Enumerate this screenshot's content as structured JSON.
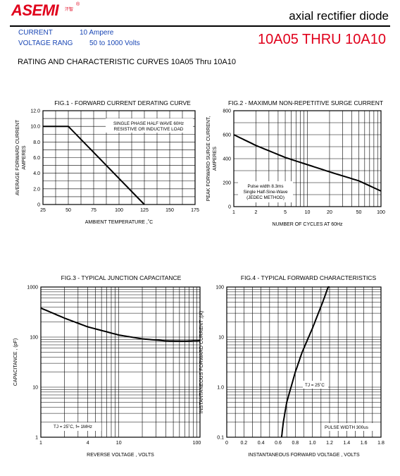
{
  "header": {
    "logo_text": "ASEMI",
    "logo_sub": "汗智",
    "reg_mark": "®",
    "doc_type": "axial rectifier diode",
    "current_label": "CURRENT",
    "current_value": "10 Ampere",
    "voltage_label": "VOLTAGE RANG",
    "voltage_value": "50 to 1000 Volts",
    "part_range": "10A05 THRU 10A10",
    "page_heading": "RATING AND CHARACTERISTIC CURVES 10A05 Thru 10A10"
  },
  "chart_data": [
    {
      "id": "fig1",
      "type": "line",
      "title": "FIG.1 - FORWARD CURRENT DERATING CURVE",
      "xlabel": "AMBIENT TEMPERATURE ,˚C",
      "ylabel": "AVERAGE FORWARD CURRENT\nAMPERES",
      "xlim": [
        25,
        175
      ],
      "ylim": [
        0,
        12
      ],
      "xticks": [
        25,
        50,
        75,
        100,
        125,
        150,
        175
      ],
      "xticklabels": [
        "25",
        "50",
        "75",
        "100",
        "125",
        "150",
        "175"
      ],
      "yticks": [
        0,
        2,
        4,
        6,
        8,
        10,
        12
      ],
      "yticklabels": [
        "0",
        "2.0",
        "4.0",
        "6.0",
        "8.0",
        "10.0",
        "12.0"
      ],
      "grid": true,
      "annotations": [
        "SINGLE PHASE HALF WAVE 60Hz",
        "RESISTIVE OR INDUCTIVE LOAD"
      ],
      "series": [
        {
          "x": [
            25,
            50,
            125
          ],
          "y": [
            10,
            10,
            0
          ]
        }
      ]
    },
    {
      "id": "fig2",
      "type": "line",
      "title": "FIG.2 - MAXIMUM NON-REPETITIVE SURGE CURRENT",
      "xlabel": "NUMBER OF CYCLES AT 60Hz",
      "ylabel": "PEAK FORWARD SURGE CURRENT,\nAMPERES",
      "xscale": "log",
      "xlim": [
        1,
        100
      ],
      "ylim": [
        0,
        800
      ],
      "xticks": [
        1,
        2,
        5,
        10,
        20,
        50,
        100
      ],
      "xticklabels": [
        "1",
        "2",
        "5",
        "10",
        "20",
        "50",
        "100"
      ],
      "yticks": [
        0,
        200,
        400,
        600,
        800
      ],
      "yticklabels": [
        "0",
        "200",
        "400",
        "600",
        "800"
      ],
      "grid": true,
      "annotations": [
        "Pulse width 8.3ms",
        "Single Half-Sine-Wave",
        "(JEDEC METHOD)"
      ],
      "series": [
        {
          "x": [
            1,
            2,
            5,
            10,
            20,
            50,
            100
          ],
          "y": [
            600,
            510,
            410,
            350,
            290,
            215,
            130
          ]
        }
      ]
    },
    {
      "id": "fig3",
      "type": "line",
      "title": "FIG.3 - TYPICAL JUNCTION CAPACITANCE",
      "xlabel": "REVERSE VOLTAGE , VOLTS",
      "ylabel": "CAPACITANCE , (pF)",
      "xscale": "log",
      "yscale": "log",
      "xlim": [
        1,
        110
      ],
      "ylim": [
        1,
        1000
      ],
      "xticks": [
        1,
        4,
        10,
        100
      ],
      "xticklabels": [
        "1",
        "4",
        "10",
        "100"
      ],
      "yticks": [
        1,
        10,
        100,
        1000
      ],
      "yticklabels": [
        "1",
        "10",
        "100",
        "1000"
      ],
      "grid": true,
      "annotations": [
        "TJ = 25˚C, f= 1MHz"
      ],
      "series": [
        {
          "x": [
            1,
            2,
            4,
            10,
            20,
            40,
            70,
            110
          ],
          "y": [
            380,
            240,
            160,
            110,
            92,
            84,
            83,
            85
          ]
        }
      ]
    },
    {
      "id": "fig4",
      "type": "line",
      "title": "FIG.4 - TYPICAL FORWARD CHARACTERISTICS",
      "xlabel": "INSTANTANEOUS FORWARD VOLTAGE , VOLTS",
      "ylabel": "INSTANTANEOUS FORWARD CURRENT ,(A)",
      "yscale": "log",
      "xlim": [
        0,
        1.8
      ],
      "ylim": [
        0.1,
        100
      ],
      "xticks": [
        0,
        0.2,
        0.4,
        0.6,
        0.8,
        1.0,
        1.2,
        1.4,
        1.6,
        1.8
      ],
      "xticklabels": [
        "0",
        "0.2",
        "0.4",
        "0.6",
        "0.8",
        "1.0",
        "1.2",
        "1.4",
        "1.6",
        "1.8"
      ],
      "yticks": [
        0.1,
        1,
        10,
        100
      ],
      "yticklabels": [
        "0.1",
        "1.0",
        "10",
        "100"
      ],
      "grid": true,
      "annotations": [
        "TJ = 25˚C",
        "PULSE WIDTH 300us"
      ],
      "series": [
        {
          "x": [
            0.64,
            0.66,
            0.7,
            0.75,
            0.8,
            0.88,
            1.0,
            1.12,
            1.2
          ],
          "y": [
            0.1,
            0.2,
            0.5,
            1.0,
            2.0,
            5.0,
            15,
            50,
            120
          ]
        }
      ]
    }
  ]
}
